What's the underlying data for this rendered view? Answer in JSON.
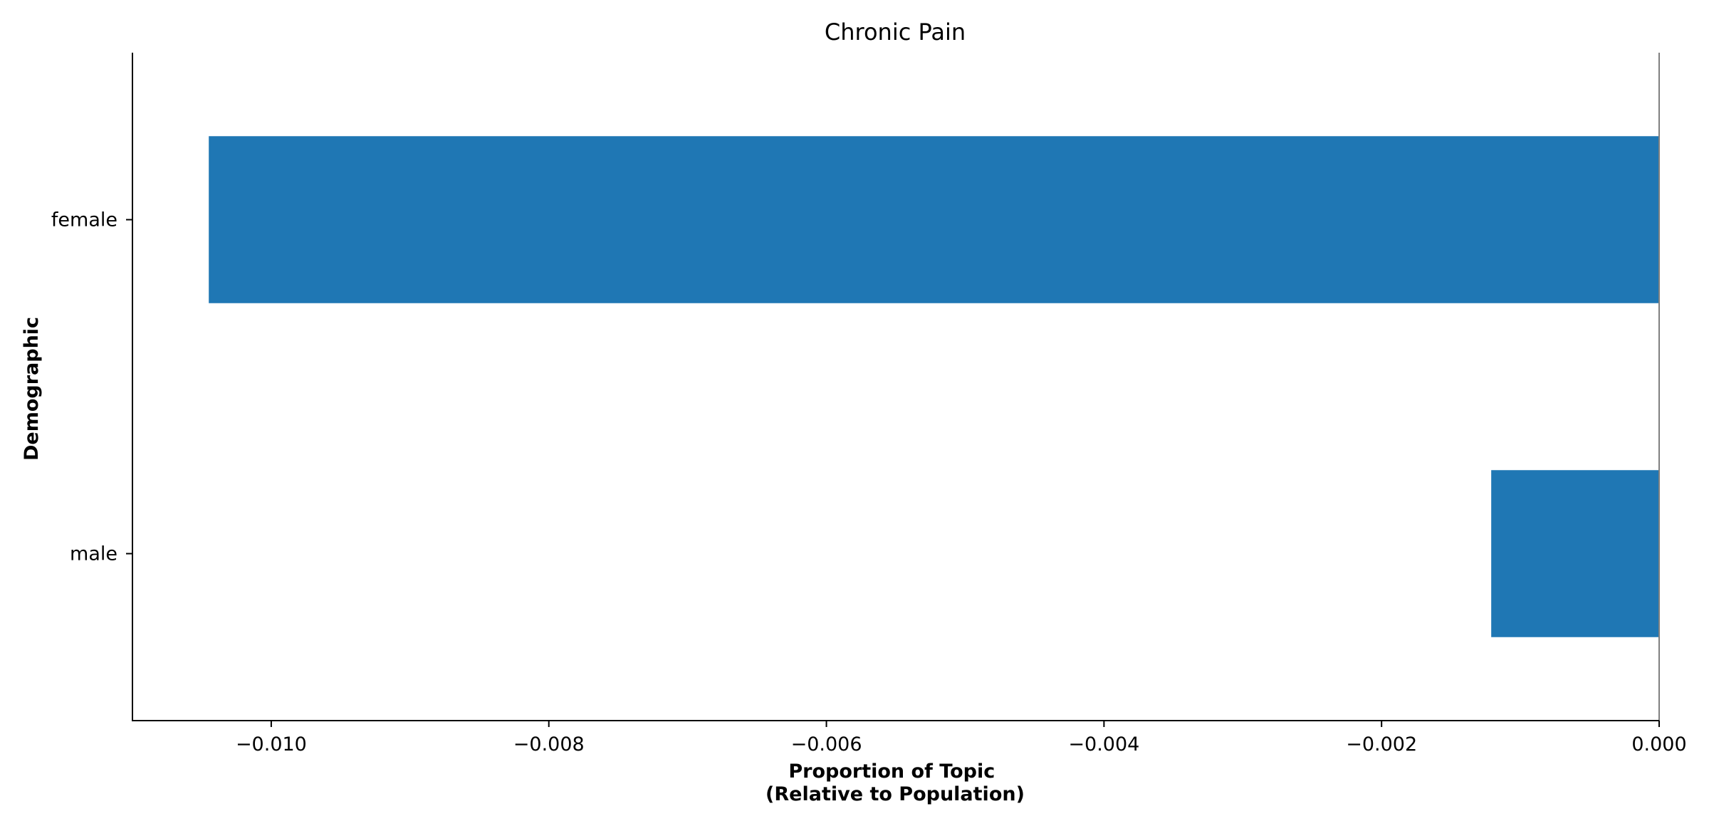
{
  "chart_data": {
    "type": "bar",
    "orientation": "horizontal",
    "title": "Chronic Pain",
    "xlabel_lines": [
      "Proportion of Topic",
      "(Relative to Population)"
    ],
    "ylabel": "Demographic",
    "categories": [
      "female",
      "male"
    ],
    "values": [
      -0.01045,
      -0.00121
    ],
    "xlim": [
      -0.011,
      0.0
    ],
    "x_ticks": [
      -0.01,
      -0.008,
      -0.006,
      -0.004,
      -0.002,
      0.0
    ],
    "x_tick_labels": [
      "−0.010",
      "−0.008",
      "−0.006",
      "−0.004",
      "−0.002",
      "0.000"
    ],
    "bar_color": "#1f77b4",
    "zero_line_color": "#808080",
    "grid": false,
    "legend": "none"
  }
}
